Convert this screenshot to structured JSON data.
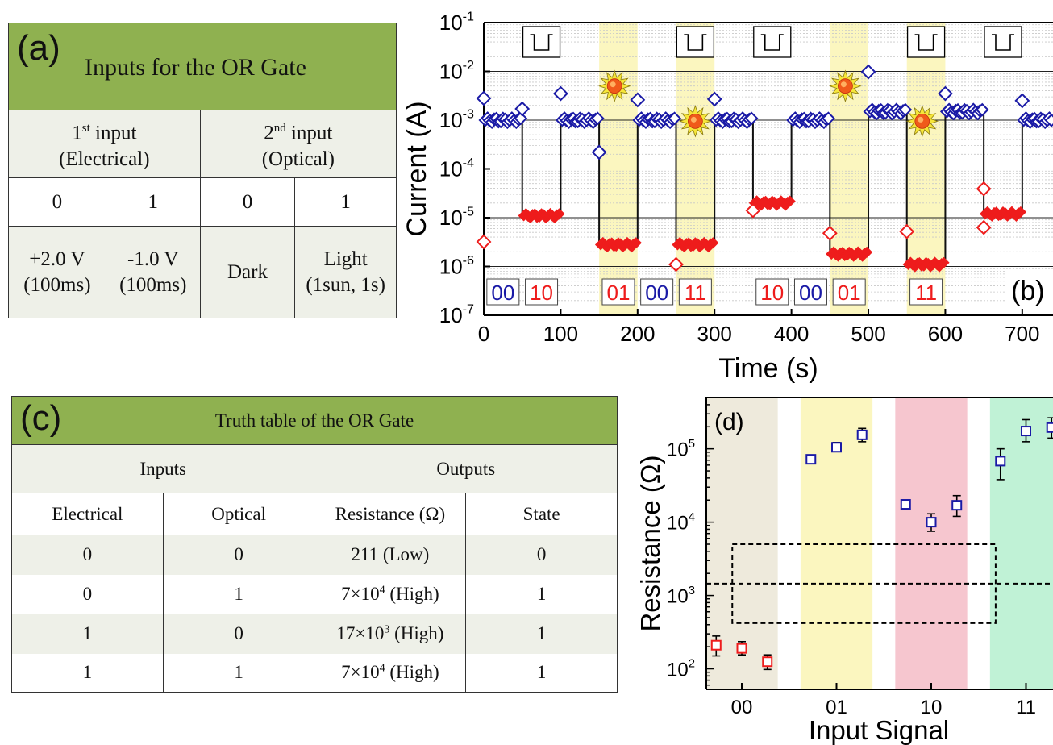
{
  "panel_a": {
    "label": "(a)",
    "title": "Inputs for the OR Gate",
    "first_input": {
      "base": "1",
      "sup": "st",
      "rest": " input",
      "sub": "(Electrical)"
    },
    "second_input": {
      "base": "2",
      "sup": "nd",
      "rest": " input",
      "sub": "(Optical)"
    },
    "values": [
      "0",
      "1",
      "0",
      "1"
    ],
    "definitions": [
      {
        "l1": "+2.0 V",
        "l2": "(100ms)"
      },
      {
        "l1": "-1.0 V",
        "l2": "(100ms)"
      },
      {
        "l1": "Dark",
        "l2": ""
      },
      {
        "l1": "Light",
        "l2": "(1sun, 1s)"
      }
    ]
  },
  "panel_c": {
    "label": "(c)",
    "title": "Truth table of the OR Gate",
    "group_inputs": "Inputs",
    "group_outputs": "Outputs",
    "col_headers": [
      "Electrical",
      "Optical",
      "Resistance (Ω)",
      "State"
    ],
    "rows": [
      {
        "e": "0",
        "o": "0",
        "r_main": "211 (Low)",
        "r_sup": "",
        "r_tail": "",
        "s": "0"
      },
      {
        "e": "0",
        "o": "1",
        "r_main": "7×10",
        "r_sup": "4",
        "r_tail": " (High)",
        "s": "1"
      },
      {
        "e": "1",
        "o": "0",
        "r_main": "17×10",
        "r_sup": "3",
        "r_tail": " (High)",
        "s": "1"
      },
      {
        "e": "1",
        "o": "1",
        "r_main": "7×10",
        "r_sup": "4",
        "r_tail": " (High)",
        "s": "1"
      }
    ]
  },
  "colors": {
    "header_green": "#8fb150",
    "yellow_band": "#fbf6bf",
    "blue_marker": "#1a1aa6",
    "red_marker": "#ee1c1c",
    "tan_band": "#eeeadc",
    "pink_band": "#f6c6cf",
    "green_band": "#c0f2d6"
  },
  "icons": {
    "sun": "sun-icon",
    "pulse": "square-pulse-icon"
  },
  "chart_data": [
    {
      "panel": "(b)",
      "type": "scatter",
      "xlabel": "Time (s)",
      "ylabel": "Current (A)",
      "xlim": [
        0,
        740
      ],
      "ylim_log10": [
        -7,
        -1
      ],
      "log_y": true,
      "x_ticks": [
        "0",
        "100",
        "200",
        "300",
        "400",
        "500",
        "600",
        "700"
      ],
      "y_ticks": [
        {
          "base": "10",
          "exp": "-1"
        },
        {
          "base": "10",
          "exp": "-2"
        },
        {
          "base": "10",
          "exp": "-3"
        },
        {
          "base": "10",
          "exp": "-4"
        },
        {
          "base": "10",
          "exp": "-5"
        },
        {
          "base": "10",
          "exp": "-6"
        },
        {
          "base": "10",
          "exp": "-7"
        }
      ],
      "light_on_intervals": [
        [
          150,
          200
        ],
        [
          250,
          300
        ],
        [
          450,
          500
        ],
        [
          550,
          600
        ]
      ],
      "pulse_icons_at": [
        75,
        275,
        375,
        575,
        675
      ],
      "sun_icons_at": [
        {
          "x": 170,
          "y": 0.005
        },
        {
          "x": 275,
          "y": 0.00095
        },
        {
          "x": 470,
          "y": 0.005
        },
        {
          "x": 570,
          "y": 0.00095
        }
      ],
      "input_labels": [
        {
          "text": "00",
          "x": 25,
          "kind": "low"
        },
        {
          "text": "10",
          "x": 75,
          "kind": "high"
        },
        {
          "text": "01",
          "x": 175,
          "kind": "high"
        },
        {
          "text": "00",
          "x": 225,
          "kind": "low"
        },
        {
          "text": "11",
          "x": 275,
          "kind": "high"
        },
        {
          "text": "10",
          "x": 375,
          "kind": "high"
        },
        {
          "text": "00",
          "x": 425,
          "kind": "low"
        },
        {
          "text": "01",
          "x": 475,
          "kind": "high"
        },
        {
          "text": "11",
          "x": 575,
          "kind": "high"
        }
      ],
      "segments": [
        {
          "x0": 0,
          "x1": 50,
          "y": 0.001,
          "state": "low"
        },
        {
          "x0": 50,
          "x1": 100,
          "y": 1.1e-05,
          "state": "high"
        },
        {
          "x0": 100,
          "x1": 150,
          "y": 0.001,
          "state": "low"
        },
        {
          "x0": 150,
          "x1": 200,
          "y": 2.8e-06,
          "state": "high"
        },
        {
          "x0": 200,
          "x1": 250,
          "y": 0.001,
          "state": "low"
        },
        {
          "x0": 250,
          "x1": 300,
          "y": 2.8e-06,
          "state": "high"
        },
        {
          "x0": 300,
          "x1": 350,
          "y": 0.001,
          "state": "low"
        },
        {
          "x0": 350,
          "x1": 400,
          "y": 2e-05,
          "state": "high"
        },
        {
          "x0": 400,
          "x1": 450,
          "y": 0.001,
          "state": "low"
        },
        {
          "x0": 450,
          "x1": 500,
          "y": 1.8e-06,
          "state": "high"
        },
        {
          "x0": 500,
          "x1": 550,
          "y": 0.0015,
          "state": "low"
        },
        {
          "x0": 550,
          "x1": 600,
          "y": 1.1e-06,
          "state": "high"
        },
        {
          "x0": 600,
          "x1": 650,
          "y": 0.0015,
          "state": "low"
        },
        {
          "x0": 650,
          "x1": 700,
          "y": 1.2e-05,
          "state": "high"
        },
        {
          "x0": 700,
          "x1": 740,
          "y": 0.001,
          "state": "low"
        }
      ],
      "spikes": [
        {
          "x": 0,
          "y": 3.2e-06,
          "state": "high"
        },
        {
          "x": 0,
          "y": 0.0028,
          "state": "low"
        },
        {
          "x": 50,
          "y": 0.0017,
          "state": "low"
        },
        {
          "x": 100,
          "y": 0.0035,
          "state": "low"
        },
        {
          "x": 150,
          "y": 0.00022,
          "state": "low"
        },
        {
          "x": 200,
          "y": 0.0026,
          "state": "low"
        },
        {
          "x": 250,
          "y": 1.1e-06,
          "state": "high"
        },
        {
          "x": 300,
          "y": 0.0027,
          "state": "low"
        },
        {
          "x": 350,
          "y": 1.4e-05,
          "state": "high"
        },
        {
          "x": 450,
          "y": 4.8e-06,
          "state": "high"
        },
        {
          "x": 500,
          "y": 0.0098,
          "state": "low"
        },
        {
          "x": 550,
          "y": 5.2e-06,
          "state": "high"
        },
        {
          "x": 600,
          "y": 0.0035,
          "state": "low"
        },
        {
          "x": 650,
          "y": 3.9e-05,
          "state": "high"
        },
        {
          "x": 650,
          "y": 6.3e-06,
          "state": "high"
        },
        {
          "x": 700,
          "y": 0.0025,
          "state": "low"
        }
      ]
    },
    {
      "panel": "(d)",
      "type": "scatter",
      "xlabel": "Input Signal",
      "ylabel": "Resistance (Ω)",
      "log_y": true,
      "ylim_log10": [
        1.72,
        5.7
      ],
      "categories": [
        "00",
        "01",
        "10",
        "11"
      ],
      "y_ticks": [
        {
          "base": "10",
          "exp": "2"
        },
        {
          "base": "10",
          "exp": "3"
        },
        {
          "base": "10",
          "exp": "4"
        },
        {
          "base": "10",
          "exp": "5"
        }
      ],
      "points": [
        {
          "cat": 0,
          "offset": -0.27,
          "y": 210,
          "err_lo": 150,
          "err_hi": 280,
          "state": "low"
        },
        {
          "cat": 0,
          "offset": 0.0,
          "y": 190,
          "err_lo": 155,
          "err_hi": 235,
          "state": "low"
        },
        {
          "cat": 0,
          "offset": 0.27,
          "y": 125,
          "err_lo": 98,
          "err_hi": 155,
          "state": "low"
        },
        {
          "cat": 1,
          "offset": -0.27,
          "y": 72000,
          "err_lo": 67000,
          "err_hi": 78000,
          "state": "high"
        },
        {
          "cat": 1,
          "offset": 0.0,
          "y": 105000,
          "err_lo": 92000,
          "err_hi": 122000,
          "state": "high"
        },
        {
          "cat": 1,
          "offset": 0.27,
          "y": 155000,
          "err_lo": 125000,
          "err_hi": 190000,
          "state": "high"
        },
        {
          "cat": 2,
          "offset": -0.27,
          "y": 17500,
          "err_lo": 16000,
          "err_hi": 19000,
          "state": "high"
        },
        {
          "cat": 2,
          "offset": 0.0,
          "y": 10000,
          "err_lo": 7500,
          "err_hi": 13000,
          "state": "high"
        },
        {
          "cat": 2,
          "offset": 0.27,
          "y": 17000,
          "err_lo": 12000,
          "err_hi": 23000,
          "state": "high"
        },
        {
          "cat": 3,
          "offset": -0.27,
          "y": 68000,
          "err_lo": 38000,
          "err_hi": 100000,
          "state": "high"
        },
        {
          "cat": 3,
          "offset": 0.0,
          "y": 175000,
          "err_lo": 125000,
          "err_hi": 250000,
          "state": "high"
        },
        {
          "cat": 3,
          "offset": 0.27,
          "y": 195000,
          "err_lo": 140000,
          "err_hi": 265000,
          "state": "high"
        }
      ],
      "threshold": 1450,
      "threshold_box": [
        420,
        5000
      ]
    }
  ]
}
